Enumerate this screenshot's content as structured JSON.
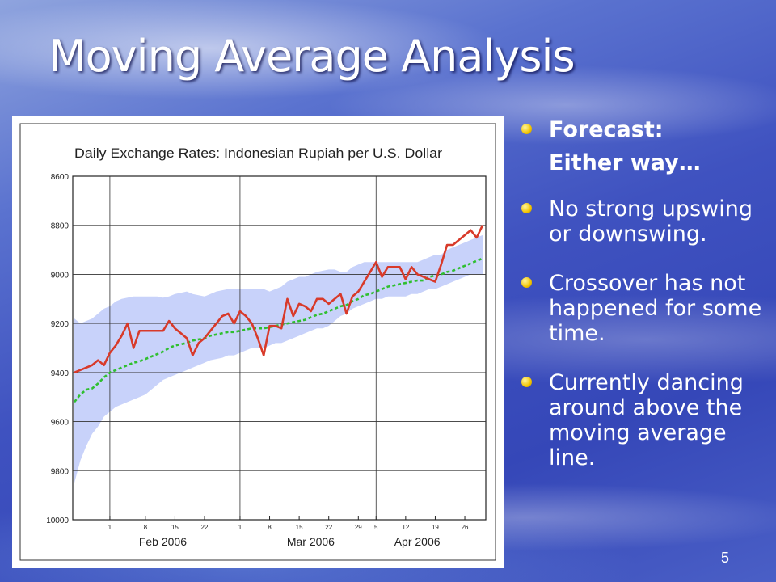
{
  "slide": {
    "title": "Moving Average Analysis",
    "page_number": "5"
  },
  "bullets": [
    {
      "text": "Forecast:",
      "sub": "Either way…",
      "bold": true
    },
    {
      "text": "No strong upswing or downswing."
    },
    {
      "text": "Crossover has not happened for some time."
    },
    {
      "text": "Currently dancing around above the moving average line."
    }
  ],
  "colors": {
    "bullet": "#f2c400",
    "rate_line": "#d83a2a",
    "moving_average": "#2fbf2f",
    "band": "#c8d2fa"
  },
  "chart_data": {
    "type": "line",
    "title": "Daily Exchange Rates: Indonesian Rupiah per U.S. Dollar",
    "xlabel": "",
    "ylabel": "",
    "y_axis_inverted": true,
    "ylim": [
      8600,
      10000
    ],
    "yticks": [
      "8600",
      "8800",
      "9000",
      "9200",
      "9400",
      "9600",
      "9800",
      "10000"
    ],
    "x_day_ticks": [
      "1",
      "8",
      "15",
      "22",
      "1",
      "8",
      "15",
      "22",
      "29",
      "5",
      "12",
      "19",
      "26"
    ],
    "x_month_labels": [
      "Feb 2006",
      "Mar 2006",
      "Apr 2006"
    ],
    "grid": true,
    "series": [
      {
        "role": "daily-rate",
        "style": "solid",
        "values": [
          9400,
          9390,
          9380,
          9370,
          9350,
          9370,
          9320,
          9290,
          9250,
          9200,
          9300,
          9230,
          9230,
          9230,
          9230,
          9230,
          9190,
          9220,
          9240,
          9260,
          9330,
          9280,
          9260,
          9230,
          9200,
          9170,
          9160,
          9200,
          9150,
          9170,
          9200,
          9260,
          9330,
          9210,
          9210,
          9220,
          9100,
          9170,
          9120,
          9130,
          9150,
          9100,
          9100,
          9120,
          9100,
          9080,
          9160,
          9090,
          9070,
          9030,
          8990,
          8950,
          9010,
          8970,
          8970,
          8970,
          9020,
          8970,
          9000,
          9010,
          9020,
          9030,
          8960,
          8880,
          8880,
          8860,
          8840,
          8820,
          8850,
          8800
        ]
      },
      {
        "role": "moving-average",
        "style": "dashed",
        "values": [
          9520,
          9490,
          9470,
          9465,
          9445,
          9420,
          9400,
          9390,
          9380,
          9370,
          9360,
          9355,
          9345,
          9335,
          9325,
          9315,
          9300,
          9290,
          9285,
          9280,
          9270,
          9265,
          9260,
          9250,
          9245,
          9240,
          9235,
          9235,
          9230,
          9225,
          9220,
          9220,
          9220,
          9215,
          9210,
          9205,
          9200,
          9195,
          9190,
          9185,
          9175,
          9165,
          9160,
          9150,
          9140,
          9130,
          9125,
          9110,
          9100,
          9085,
          9080,
          9070,
          9060,
          9050,
          9045,
          9040,
          9035,
          9030,
          9025,
          9025,
          9010,
          9005,
          9000,
          8990,
          8985,
          8975,
          8965,
          8955,
          8945,
          8935
        ]
      }
    ],
    "band_upper": [
      9180,
      9200,
      9190,
      9180,
      9160,
      9140,
      9130,
      9110,
      9100,
      9095,
      9090,
      9090,
      9090,
      9090,
      9090,
      9095,
      9090,
      9080,
      9075,
      9070,
      9080,
      9085,
      9090,
      9080,
      9070,
      9065,
      9060,
      9060,
      9060,
      9060,
      9060,
      9060,
      9060,
      9070,
      9060,
      9050,
      9030,
      9020,
      9010,
      9010,
      9000,
      8990,
      8985,
      8980,
      8980,
      8990,
      8990,
      8970,
      8960,
      8950,
      8950,
      8950,
      8950,
      8950,
      8950,
      8950,
      8950,
      8950,
      8950,
      8940,
      8930,
      8920,
      8920,
      8900,
      8890,
      8880,
      8870,
      8860,
      8850,
      8840
    ],
    "band_lower": [
      9850,
      9760,
      9700,
      9650,
      9620,
      9580,
      9560,
      9540,
      9530,
      9520,
      9510,
      9500,
      9490,
      9470,
      9450,
      9430,
      9420,
      9410,
      9400,
      9390,
      9380,
      9370,
      9360,
      9350,
      9345,
      9340,
      9330,
      9330,
      9320,
      9310,
      9300,
      9300,
      9300,
      9290,
      9280,
      9280,
      9270,
      9260,
      9250,
      9240,
      9230,
      9220,
      9220,
      9210,
      9190,
      9170,
      9160,
      9140,
      9130,
      9120,
      9110,
      9100,
      9100,
      9090,
      9090,
      9090,
      9090,
      9080,
      9080,
      9070,
      9060,
      9060,
      9050,
      9040,
      9030,
      9020,
      9010,
      9000,
      9000,
      9000
    ]
  }
}
